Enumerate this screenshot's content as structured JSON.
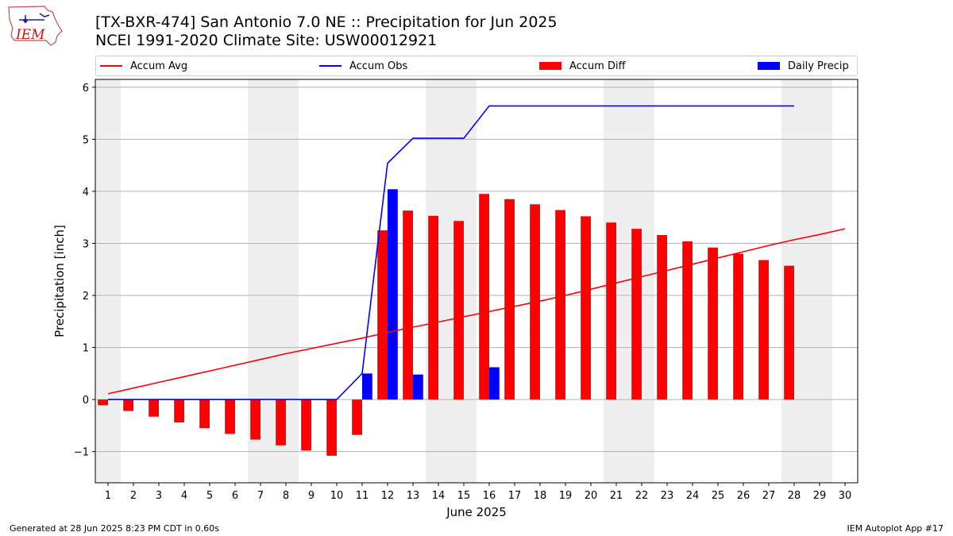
{
  "logo": {
    "text": "IEM"
  },
  "title_line1": "[TX-BXR-474] San Antonio 7.0 NE :: Precipitation for Jun 2025",
  "title_line2": "NCEI 1991-2020 Climate Site: USW00012921",
  "footer_left": "Generated at 28 Jun 2025 8:23 PM CDT in 0.60s",
  "footer_right": "IEM Autoplot App #17",
  "colors": {
    "avg": "#ff0000",
    "obs": "#0000ff",
    "diff": "#ff0000",
    "daily": "#0000ff",
    "weekend": "#eeeeee",
    "grid": "#b0b0b0"
  },
  "chart_data": {
    "type": "bar",
    "xlabel": "June 2025",
    "ylabel": "Precipitation [inch]",
    "x": [
      1,
      2,
      3,
      4,
      5,
      6,
      7,
      8,
      9,
      10,
      11,
      12,
      13,
      14,
      15,
      16,
      17,
      18,
      19,
      20,
      21,
      22,
      23,
      24,
      25,
      26,
      27,
      28,
      29,
      30
    ],
    "xlim": [
      0.5,
      30.5
    ],
    "ylim": [
      -1.6,
      6.15
    ],
    "yticks": [
      -1,
      0,
      1,
      2,
      3,
      4,
      5,
      6
    ],
    "ytick_labels": [
      "−1",
      "0",
      "1",
      "2",
      "3",
      "4",
      "5",
      "6"
    ],
    "grid": "horizontal",
    "legend_location": "top, above plot",
    "weekend_bands": [
      [
        0.5,
        1.5
      ],
      [
        6.5,
        8.5
      ],
      [
        13.5,
        15.5
      ],
      [
        20.5,
        22.5
      ],
      [
        27.5,
        29.5
      ]
    ],
    "series": [
      {
        "name": "Accum Avg",
        "kind": "line",
        "x": [
          1,
          2,
          3,
          4,
          5,
          6,
          7,
          8,
          9,
          10,
          11,
          12,
          13,
          14,
          15,
          16,
          17,
          18,
          19,
          20,
          21,
          22,
          23,
          24,
          25,
          26,
          27,
          28,
          29,
          30
        ],
        "values": [
          0.11,
          0.22,
          0.33,
          0.44,
          0.55,
          0.66,
          0.77,
          0.88,
          0.98,
          1.08,
          1.18,
          1.29,
          1.39,
          1.49,
          1.59,
          1.69,
          1.79,
          1.89,
          2.0,
          2.12,
          2.24,
          2.36,
          2.48,
          2.6,
          2.72,
          2.84,
          2.96,
          3.07,
          3.17,
          3.28
        ]
      },
      {
        "name": "Accum Obs",
        "kind": "line",
        "x": [
          1,
          2,
          3,
          4,
          5,
          6,
          7,
          8,
          9,
          10,
          11,
          12,
          13,
          14,
          15,
          16,
          17,
          18,
          19,
          20,
          21,
          22,
          23,
          24,
          25,
          26,
          27,
          28
        ],
        "values": [
          0,
          0,
          0,
          0,
          0,
          0,
          0,
          0,
          0,
          0,
          0.5,
          4.54,
          5.02,
          5.02,
          5.02,
          5.64,
          5.64,
          5.64,
          5.64,
          5.64,
          5.64,
          5.64,
          5.64,
          5.64,
          5.64,
          5.64,
          5.64,
          5.64
        ]
      },
      {
        "name": "Accum Diff",
        "kind": "bar",
        "x": [
          1,
          2,
          3,
          4,
          5,
          6,
          7,
          8,
          9,
          10,
          11,
          12,
          13,
          14,
          15,
          16,
          17,
          18,
          19,
          20,
          21,
          22,
          23,
          24,
          25,
          26,
          27,
          28
        ],
        "values": [
          -0.11,
          -0.22,
          -0.33,
          -0.44,
          -0.55,
          -0.66,
          -0.77,
          -0.88,
          -0.98,
          -1.08,
          -0.68,
          3.25,
          3.63,
          3.53,
          3.43,
          3.95,
          3.85,
          3.75,
          3.64,
          3.52,
          3.4,
          3.28,
          3.16,
          3.04,
          2.92,
          2.8,
          2.68,
          2.57
        ]
      },
      {
        "name": "Daily Precip",
        "kind": "bar",
        "x": [
          11,
          12,
          13,
          16
        ],
        "values": [
          0.5,
          4.04,
          0.48,
          0.62
        ]
      }
    ]
  }
}
